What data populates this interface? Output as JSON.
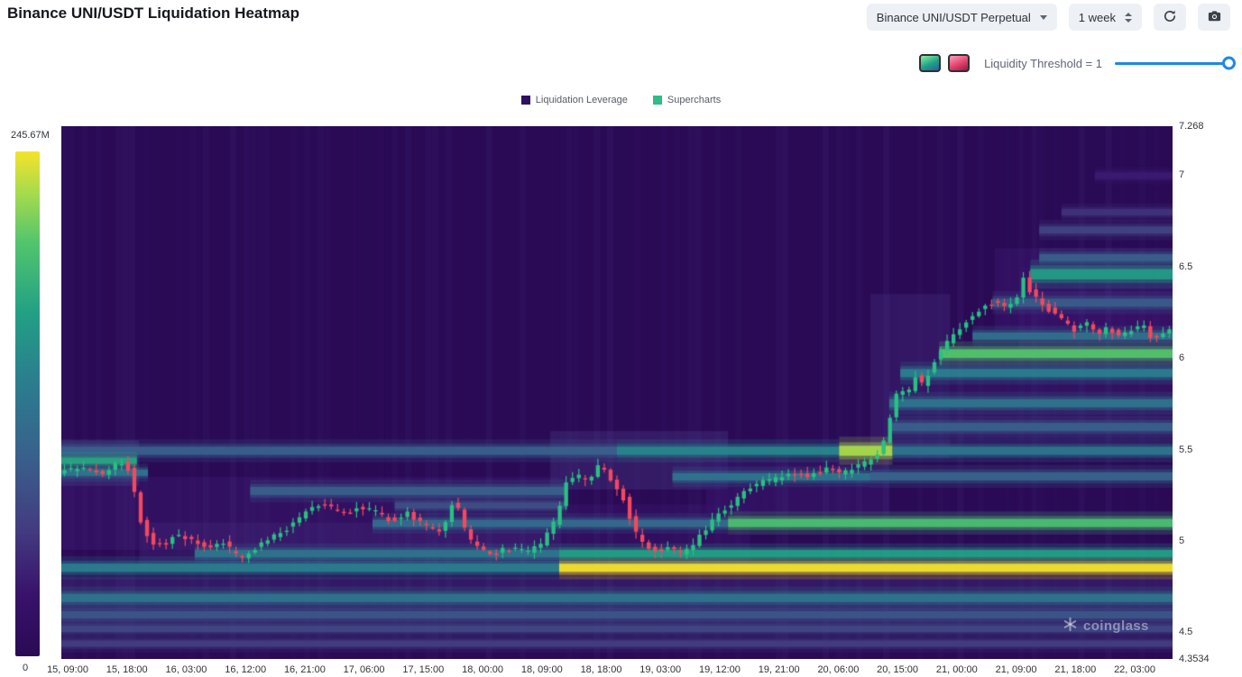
{
  "header": {
    "title": "Binance UNI/USDT Liquidation Heatmap",
    "pair_select": "Binance UNI/USDT Perpetual",
    "timeframe_select": "1 week"
  },
  "threshold": {
    "label": "Liquidity Threshold = 1",
    "slider_color": "#1e88e5",
    "heatmap_swatch": [
      "#8ff0a4",
      "#1fa187",
      "#2c5f9e"
    ],
    "candle_swatch": [
      "#ff9ec2",
      "#e2426b",
      "#8f1c44"
    ]
  },
  "legend": [
    {
      "label": "Liquidation Leverage",
      "color": "#2d1060"
    },
    {
      "label": "Supercharts",
      "color": "#2ebd85"
    }
  ],
  "colorbar": {
    "max_label": "245.67M",
    "min_label": "0"
  },
  "watermark": "coinglass",
  "chart_data": {
    "type": "heatmap",
    "title": "Binance UNI/USDT Liquidation Heatmap",
    "x_ticks": [
      "15, 09:00",
      "15, 18:00",
      "16, 03:00",
      "16, 12:00",
      "16, 21:00",
      "17, 06:00",
      "17, 15:00",
      "18, 00:00",
      "18, 09:00",
      "18, 18:00",
      "19, 03:00",
      "19, 12:00",
      "19, 21:00",
      "20, 06:00",
      "20, 15:00",
      "21, 00:00",
      "21, 09:00",
      "21, 18:00",
      "22, 03:00"
    ],
    "y_ticks": [
      {
        "label": "7.268",
        "value": 7.268
      },
      {
        "label": "7",
        "value": 7
      },
      {
        "label": "6.5",
        "value": 6.5
      },
      {
        "label": "6",
        "value": 6
      },
      {
        "label": "5.5",
        "value": 5.5
      },
      {
        "label": "5",
        "value": 5
      },
      {
        "label": "4.5",
        "value": 4.5
      },
      {
        "label": "4.3534",
        "value": 4.3534
      }
    ],
    "y_min": 4.3534,
    "y_max": 7.268,
    "colorbar_min": 0,
    "colorbar_max": "245.67M",
    "colormap_stops": [
      [
        0,
        "#2a0a55"
      ],
      [
        0.12,
        "#38126b"
      ],
      [
        0.25,
        "#433b80"
      ],
      [
        0.4,
        "#39618c"
      ],
      [
        0.55,
        "#2a7f8e"
      ],
      [
        0.68,
        "#22a085"
      ],
      [
        0.82,
        "#52c56d"
      ],
      [
        0.92,
        "#a8dc4b"
      ],
      [
        1,
        "#f4e32a"
      ]
    ],
    "liquidity_zones": [
      [
        4.5,
        4.8,
        0.0,
        1.0,
        0.18
      ],
      [
        4.95,
        5.35,
        0.0,
        0.45,
        0.13
      ],
      [
        5.28,
        5.6,
        0.44,
        0.6,
        0.2
      ],
      [
        5.45,
        6.35,
        0.728,
        0.8,
        0.17
      ],
      [
        5.55,
        6.0,
        0.8,
        1.0,
        0.14
      ],
      [
        6.15,
        6.6,
        0.84,
        1.0,
        0.13
      ],
      [
        5.15,
        5.45,
        0.58,
        0.745,
        0.13
      ],
      [
        4.88,
        5.2,
        0.45,
        0.62,
        0.11
      ],
      [
        5.3,
        5.55,
        0.0,
        0.07,
        0.22
      ],
      [
        4.86,
        5.1,
        0.07,
        0.45,
        0.16
      ],
      [
        6.0,
        6.5,
        0.862,
        1.0,
        0.12
      ]
    ],
    "liquidation_bands": [
      [
        4.83,
        4.875,
        0.0,
        0.448,
        0.55
      ],
      [
        4.83,
        4.875,
        0.448,
        1.0,
        1.0
      ],
      [
        4.665,
        4.71,
        0.0,
        1.0,
        0.5
      ],
      [
        4.575,
        4.615,
        0.0,
        1.0,
        0.36
      ],
      [
        4.5,
        4.535,
        0.0,
        1.0,
        0.3
      ],
      [
        4.42,
        4.455,
        0.0,
        1.0,
        0.26
      ],
      [
        4.91,
        4.95,
        0.12,
        0.448,
        0.5
      ],
      [
        4.91,
        4.95,
        0.448,
        1.0,
        0.68
      ],
      [
        5.075,
        5.115,
        0.28,
        0.6,
        0.45
      ],
      [
        5.075,
        5.12,
        0.6,
        1.0,
        0.8
      ],
      [
        5.47,
        5.515,
        0.0,
        0.5,
        0.4
      ],
      [
        5.47,
        5.515,
        0.5,
        0.7,
        0.58
      ],
      [
        5.465,
        5.52,
        0.7,
        0.748,
        0.92
      ],
      [
        5.47,
        5.515,
        0.748,
        1.0,
        0.5
      ],
      [
        5.42,
        5.455,
        0.0,
        0.068,
        0.7
      ],
      [
        5.355,
        5.39,
        0.0,
        0.078,
        0.5
      ],
      [
        5.25,
        5.295,
        0.17,
        0.455,
        0.4
      ],
      [
        5.175,
        5.21,
        0.3,
        0.455,
        0.33
      ],
      [
        5.33,
        5.37,
        0.55,
        0.728,
        0.5
      ],
      [
        5.33,
        5.375,
        0.728,
        1.0,
        0.42
      ],
      [
        5.73,
        5.775,
        0.745,
        1.0,
        0.5
      ],
      [
        5.6,
        5.645,
        0.745,
        1.0,
        0.4
      ],
      [
        5.895,
        5.94,
        0.755,
        1.0,
        0.55
      ],
      [
        6.0,
        6.048,
        0.79,
        1.0,
        0.82
      ],
      [
        6.1,
        6.14,
        0.82,
        1.0,
        0.48
      ],
      [
        6.28,
        6.325,
        0.838,
        1.0,
        0.38
      ],
      [
        6.43,
        6.487,
        0.872,
        1.0,
        0.66
      ],
      [
        6.53,
        6.568,
        0.88,
        1.0,
        0.4
      ],
      [
        6.68,
        6.72,
        0.88,
        1.0,
        0.28
      ],
      [
        6.78,
        6.815,
        0.9,
        1.0,
        0.22
      ],
      [
        6.98,
        7.015,
        0.93,
        1.0,
        0.15
      ]
    ],
    "price_path": [
      [
        0.0,
        5.38
      ],
      [
        0.02,
        5.4
      ],
      [
        0.04,
        5.37
      ],
      [
        0.055,
        5.43
      ],
      [
        0.065,
        5.38
      ],
      [
        0.075,
        5.08
      ],
      [
        0.085,
        4.99
      ],
      [
        0.095,
        4.97
      ],
      [
        0.105,
        5.04
      ],
      [
        0.12,
        5.0
      ],
      [
        0.135,
        4.97
      ],
      [
        0.148,
        5.0
      ],
      [
        0.158,
        4.93
      ],
      [
        0.168,
        4.9
      ],
      [
        0.18,
        4.98
      ],
      [
        0.195,
        5.03
      ],
      [
        0.21,
        5.08
      ],
      [
        0.225,
        5.17
      ],
      [
        0.24,
        5.2
      ],
      [
        0.255,
        5.14
      ],
      [
        0.27,
        5.19
      ],
      [
        0.285,
        5.16
      ],
      [
        0.3,
        5.11
      ],
      [
        0.315,
        5.15
      ],
      [
        0.33,
        5.08
      ],
      [
        0.345,
        5.06
      ],
      [
        0.357,
        5.24
      ],
      [
        0.368,
        5.03
      ],
      [
        0.378,
        4.96
      ],
      [
        0.39,
        4.93
      ],
      [
        0.4,
        4.95
      ],
      [
        0.412,
        4.96
      ],
      [
        0.424,
        4.94
      ],
      [
        0.436,
        4.99
      ],
      [
        0.448,
        5.12
      ],
      [
        0.456,
        5.31
      ],
      [
        0.466,
        5.36
      ],
      [
        0.476,
        5.33
      ],
      [
        0.488,
        5.42
      ],
      [
        0.498,
        5.33
      ],
      [
        0.508,
        5.24
      ],
      [
        0.518,
        5.06
      ],
      [
        0.528,
        4.97
      ],
      [
        0.54,
        4.94
      ],
      [
        0.552,
        4.96
      ],
      [
        0.562,
        4.93
      ],
      [
        0.572,
        4.98
      ],
      [
        0.582,
        5.06
      ],
      [
        0.592,
        5.14
      ],
      [
        0.605,
        5.19
      ],
      [
        0.618,
        5.27
      ],
      [
        0.632,
        5.32
      ],
      [
        0.645,
        5.34
      ],
      [
        0.66,
        5.37
      ],
      [
        0.675,
        5.35
      ],
      [
        0.69,
        5.39
      ],
      [
        0.705,
        5.37
      ],
      [
        0.72,
        5.41
      ],
      [
        0.732,
        5.44
      ],
      [
        0.742,
        5.52
      ],
      [
        0.75,
        5.7
      ],
      [
        0.757,
        5.85
      ],
      [
        0.764,
        5.79
      ],
      [
        0.771,
        5.9
      ],
      [
        0.778,
        5.85
      ],
      [
        0.785,
        5.94
      ],
      [
        0.793,
        6.04
      ],
      [
        0.803,
        6.1
      ],
      [
        0.813,
        6.17
      ],
      [
        0.823,
        6.24
      ],
      [
        0.833,
        6.28
      ],
      [
        0.843,
        6.31
      ],
      [
        0.853,
        6.27
      ],
      [
        0.861,
        6.3
      ],
      [
        0.868,
        6.46
      ],
      [
        0.875,
        6.36
      ],
      [
        0.885,
        6.29
      ],
      [
        0.895,
        6.25
      ],
      [
        0.905,
        6.2
      ],
      [
        0.915,
        6.15
      ],
      [
        0.925,
        6.2
      ],
      [
        0.935,
        6.13
      ],
      [
        0.945,
        6.17
      ],
      [
        0.955,
        6.11
      ],
      [
        0.965,
        6.15
      ],
      [
        0.975,
        6.19
      ],
      [
        0.985,
        6.09
      ],
      [
        1.0,
        6.16
      ]
    ],
    "candles": {
      "count": 175,
      "up_color": "#26c281",
      "down_color": "#f5485d"
    }
  }
}
